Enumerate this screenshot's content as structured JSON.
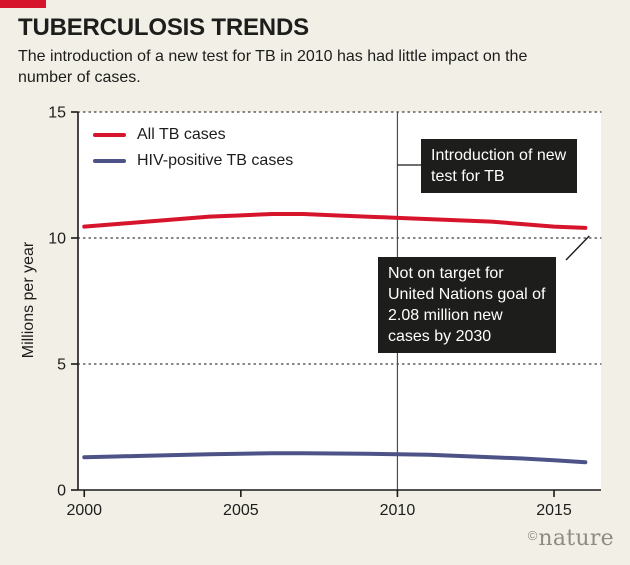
{
  "header": {
    "title": "TUBERCULOSIS TRENDS",
    "subtitle": "The introduction of a new test for TB in 2010 has had little impact on the number of cases."
  },
  "legend": {
    "items": [
      {
        "label": "All TB cases",
        "color": "#d6152c"
      },
      {
        "label": "HIV-positive TB cases",
        "color": "#4d5387"
      }
    ]
  },
  "annotations": {
    "new_test_label": "Introduction of new test for TB",
    "un_goal_label": "Not on target for United Nations goal of 2.08 million new cases by 2030"
  },
  "footer": {
    "credit_symbol": "©",
    "credit_name": "nature"
  },
  "colors": {
    "accent_red": "#d6152c",
    "series_blue": "#4d5387",
    "background": "#f1efe6",
    "callout_bg": "#1d1d1b"
  },
  "chart_data": {
    "type": "line",
    "title": "TUBERCULOSIS TRENDS",
    "xlabel": "",
    "ylabel": "Millions per year",
    "xlim": [
      1999.8,
      2016.5
    ],
    "ylim": [
      0,
      15
    ],
    "xticks": [
      2000,
      2005,
      2010,
      2015
    ],
    "yticks": [
      0,
      5,
      10,
      15
    ],
    "grid": "dotted-horizontal",
    "legend_position": "top-left",
    "vline_x": 2010,
    "x": [
      2000,
      2001,
      2002,
      2003,
      2004,
      2005,
      2006,
      2007,
      2008,
      2009,
      2010,
      2011,
      2012,
      2013,
      2014,
      2015,
      2016
    ],
    "series": [
      {
        "name": "All TB cases",
        "color": "#d6152c",
        "values": [
          10.45,
          10.55,
          10.65,
          10.75,
          10.85,
          10.9,
          10.95,
          10.95,
          10.9,
          10.85,
          10.8,
          10.75,
          10.7,
          10.65,
          10.55,
          10.45,
          10.4
        ]
      },
      {
        "name": "HIV-positive TB cases",
        "color": "#4d5387",
        "values": [
          1.3,
          1.33,
          1.36,
          1.39,
          1.42,
          1.44,
          1.46,
          1.46,
          1.45,
          1.44,
          1.42,
          1.4,
          1.35,
          1.3,
          1.25,
          1.18,
          1.1
        ]
      }
    ]
  }
}
